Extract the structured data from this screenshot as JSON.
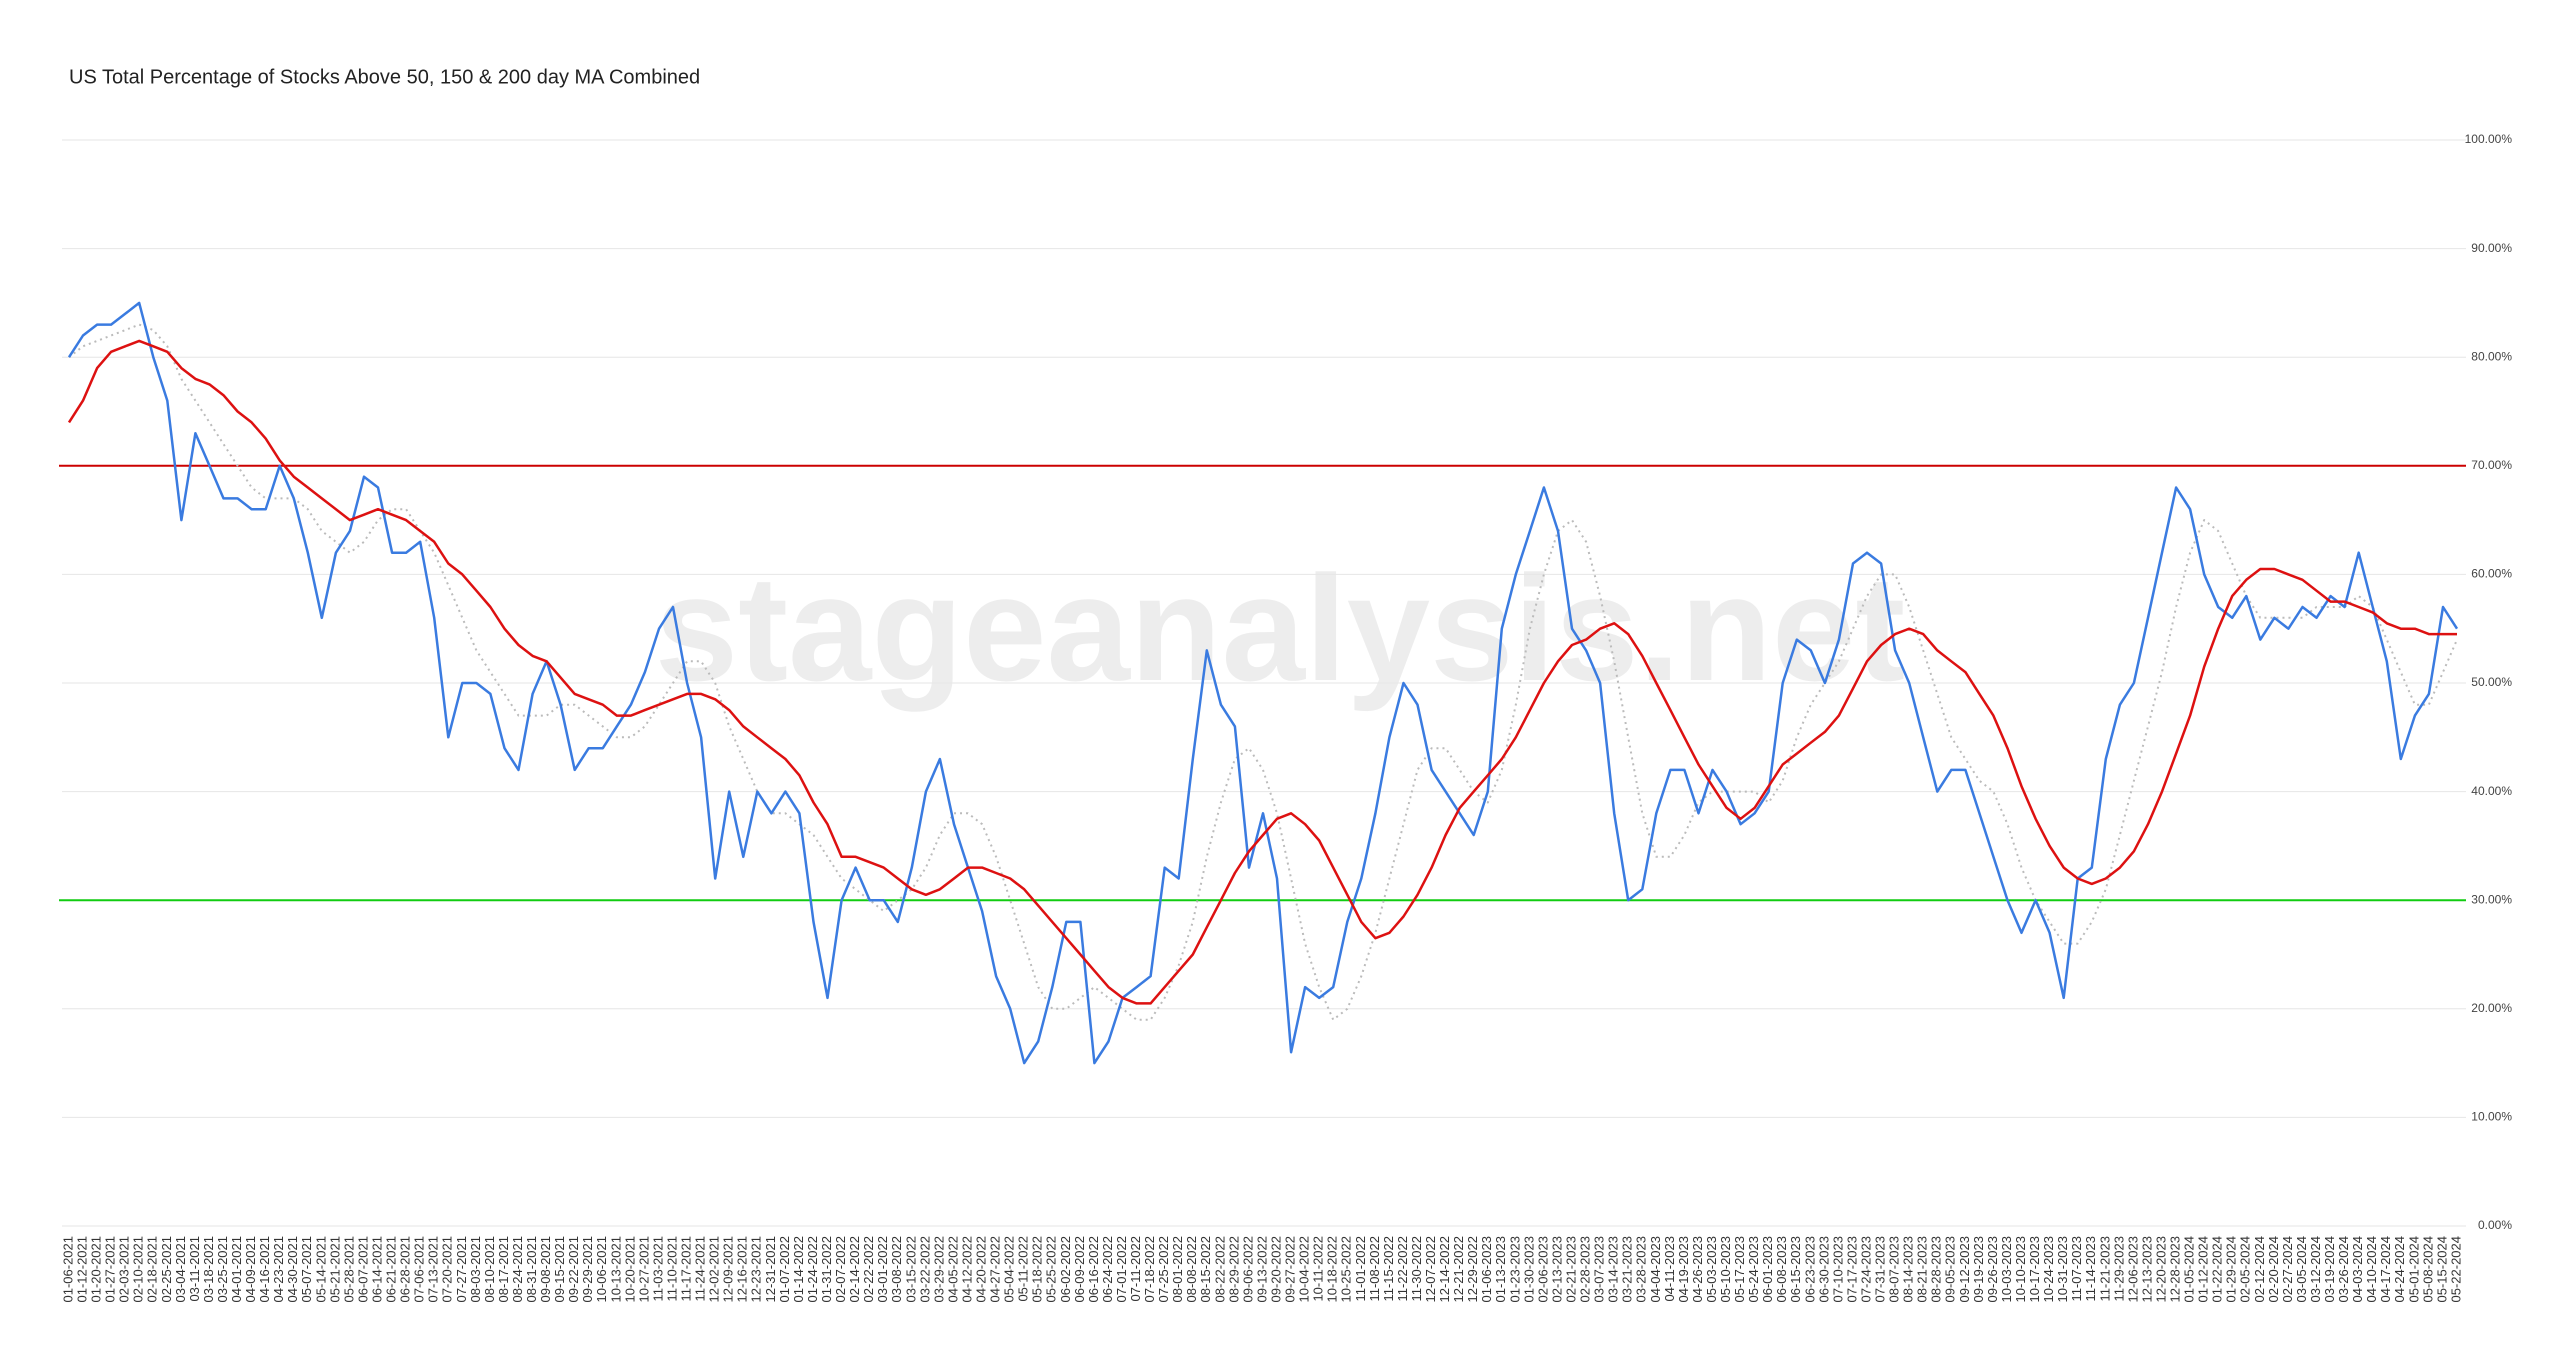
{
  "chart_data": {
    "type": "line",
    "title": "US Total Percentage of Stocks Above 50, 150 & 200 day MA Combined",
    "watermark": "stageanalysis.net",
    "categories": [
      "01-06-2021",
      "01-12-2021",
      "01-20-2021",
      "01-27-2021",
      "02-03-2021",
      "02-10-2021",
      "02-18-2021",
      "02-25-2021",
      "03-04-2021",
      "03-11-2021",
      "03-18-2021",
      "03-25-2021",
      "04-01-2021",
      "04-09-2021",
      "04-16-2021",
      "04-23-2021",
      "04-30-2021",
      "05-07-2021",
      "05-14-2021",
      "05-21-2021",
      "05-28-2021",
      "06-07-2021",
      "06-14-2021",
      "06-21-2021",
      "06-28-2021",
      "07-06-2021",
      "07-13-2021",
      "07-20-2021",
      "07-27-2021",
      "08-03-2021",
      "08-10-2021",
      "08-17-2021",
      "08-24-2021",
      "08-31-2021",
      "09-08-2021",
      "09-15-2021",
      "09-22-2021",
      "09-29-2021",
      "10-06-2021",
      "10-13-2021",
      "10-20-2021",
      "10-27-2021",
      "11-03-2021",
      "11-10-2021",
      "11-17-2021",
      "11-24-2021",
      "12-02-2021",
      "12-09-2021",
      "12-16-2021",
      "12-23-2021",
      "12-31-2021",
      "01-07-2022",
      "01-14-2022",
      "01-24-2022",
      "01-31-2022",
      "02-07-2022",
      "02-14-2022",
      "02-22-2022",
      "03-01-2022",
      "03-08-2022",
      "03-15-2022",
      "03-22-2022",
      "03-29-2022",
      "04-05-2022",
      "04-12-2022",
      "04-20-2022",
      "04-27-2022",
      "05-04-2022",
      "05-11-2022",
      "05-18-2022",
      "05-25-2022",
      "06-02-2022",
      "06-09-2022",
      "06-16-2022",
      "06-24-2022",
      "07-01-2022",
      "07-11-2022",
      "07-18-2022",
      "07-25-2022",
      "08-01-2022",
      "08-08-2022",
      "08-15-2022",
      "08-22-2022",
      "08-29-2022",
      "09-06-2022",
      "09-13-2022",
      "09-20-2022",
      "09-27-2022",
      "10-04-2022",
      "10-11-2022",
      "10-18-2022",
      "10-25-2022",
      "11-01-2022",
      "11-08-2022",
      "11-15-2022",
      "11-22-2022",
      "11-30-2022",
      "12-07-2022",
      "12-14-2022",
      "12-21-2022",
      "12-29-2022",
      "01-06-2023",
      "01-13-2023",
      "01-23-2023",
      "01-30-2023",
      "02-06-2023",
      "02-13-2023",
      "02-21-2023",
      "02-28-2023",
      "03-07-2023",
      "03-14-2023",
      "03-21-2023",
      "03-28-2023",
      "04-04-2023",
      "04-11-2023",
      "04-19-2023",
      "04-26-2023",
      "05-03-2023",
      "05-10-2023",
      "05-17-2023",
      "05-24-2023",
      "06-01-2023",
      "06-08-2023",
      "06-15-2023",
      "06-23-2023",
      "06-30-2023",
      "07-10-2023",
      "07-17-2023",
      "07-24-2023",
      "07-31-2023",
      "08-07-2023",
      "08-14-2023",
      "08-21-2023",
      "08-28-2023",
      "09-05-2023",
      "09-12-2023",
      "09-19-2023",
      "09-26-2023",
      "10-03-2023",
      "10-10-2023",
      "10-17-2023",
      "10-24-2023",
      "10-31-2023",
      "11-07-2023",
      "11-14-2023",
      "11-21-2023",
      "11-29-2023",
      "12-06-2023",
      "12-13-2023",
      "12-20-2023",
      "12-28-2023",
      "01-05-2024",
      "01-12-2024",
      "01-22-2024",
      "01-29-2024",
      "02-05-2024",
      "02-12-2024",
      "02-20-2024",
      "02-27-2024",
      "03-05-2024",
      "03-12-2024",
      "03-19-2024",
      "03-26-2024",
      "04-03-2024",
      "04-10-2024",
      "04-17-2024",
      "04-24-2024",
      "05-01-2024",
      "05-08-2024",
      "05-15-2024",
      "05-22-2024"
    ],
    "series": [
      {
        "color": "#bbbbbb",
        "dashed": true,
        "values": [
          80,
          81,
          81.5,
          82,
          82.5,
          83,
          82.5,
          81,
          78,
          76,
          74,
          72,
          70,
          68,
          67,
          67,
          67,
          66,
          64,
          63,
          62,
          63,
          65,
          66,
          66,
          64,
          62,
          59,
          56,
          53,
          51,
          49,
          47,
          47,
          47,
          48,
          48,
          47,
          46,
          45,
          45,
          46,
          48,
          50,
          52,
          52,
          50,
          46,
          43,
          40,
          38,
          38,
          37,
          36,
          34,
          32,
          31,
          30,
          29,
          30,
          31,
          33,
          36,
          38,
          38,
          37,
          34,
          30,
          26,
          22,
          20,
          20,
          21,
          22,
          21,
          20,
          19,
          19,
          21,
          24,
          28,
          34,
          39,
          43,
          44,
          42,
          38,
          32,
          26,
          22,
          19,
          20,
          23,
          27,
          32,
          37,
          42,
          44,
          44,
          42,
          40,
          39,
          42,
          48,
          55,
          60,
          64,
          65,
          63,
          58,
          52,
          45,
          38,
          34,
          34,
          36,
          39,
          40,
          40,
          40,
          40,
          39,
          41,
          45,
          48,
          50,
          52,
          55,
          58,
          60,
          60,
          57,
          53,
          49,
          45,
          43,
          41,
          40,
          37,
          33,
          30,
          28,
          26,
          26,
          28,
          31,
          36,
          41,
          46,
          51,
          57,
          62,
          65,
          64,
          61,
          58,
          56,
          56,
          56,
          56,
          57,
          57,
          57,
          58,
          57,
          54,
          51,
          48,
          48,
          51,
          54
        ]
      },
      {
        "color": "#3a7be0",
        "values": [
          80,
          82,
          83,
          83,
          84,
          85,
          80,
          76,
          65,
          73,
          70,
          67,
          67,
          66,
          66,
          70,
          67,
          62,
          56,
          62,
          64,
          69,
          68,
          62,
          62,
          63,
          56,
          45,
          50,
          50,
          49,
          44,
          42,
          49,
          52,
          48,
          42,
          44,
          44,
          46,
          48,
          51,
          55,
          57,
          50,
          45,
          32,
          40,
          34,
          40,
          38,
          40,
          38,
          28,
          21,
          30,
          33,
          30,
          30,
          28,
          33,
          40,
          43,
          37,
          33,
          29,
          23,
          20,
          15,
          17,
          22,
          28,
          28,
          15,
          17,
          21,
          22,
          23,
          33,
          32,
          43,
          53,
          48,
          46,
          33,
          38,
          32,
          16,
          22,
          21,
          22,
          28,
          32,
          38,
          45,
          50,
          48,
          42,
          40,
          38,
          36,
          40,
          55,
          60,
          64,
          68,
          64,
          55,
          53,
          50,
          38,
          30,
          31,
          38,
          42,
          42,
          38,
          42,
          40,
          37,
          38,
          40,
          50,
          54,
          53,
          50,
          54,
          61,
          62,
          61,
          53,
          50,
          45,
          40,
          42,
          42,
          38,
          34,
          30,
          27,
          30,
          27,
          21,
          32,
          33,
          43,
          48,
          50,
          56,
          62,
          68,
          66,
          60,
          57,
          56,
          58,
          54,
          56,
          55,
          57,
          56,
          58,
          57,
          62,
          57,
          52,
          43,
          47,
          49,
          57,
          55
        ]
      },
      {
        "color": "#dd1111",
        "values": [
          74,
          76,
          79,
          80.5,
          81,
          81.5,
          81,
          80.5,
          79,
          78,
          77.5,
          76.5,
          75,
          74,
          72.5,
          70.5,
          69,
          68,
          67,
          66,
          65,
          65.5,
          66,
          65.5,
          65,
          64,
          63,
          61,
          60,
          58.5,
          57,
          55,
          53.5,
          52.5,
          52,
          50.5,
          49,
          48.5,
          48,
          47,
          47,
          47.5,
          48,
          48.5,
          49,
          49,
          48.5,
          47.5,
          46,
          45,
          44,
          43,
          41.5,
          39,
          37,
          34,
          34,
          33.5,
          33,
          32,
          31,
          30.5,
          31,
          32,
          33,
          33,
          32.5,
          32,
          31,
          29.5,
          28,
          26.5,
          25,
          23.5,
          22,
          21,
          20.5,
          20.5,
          22,
          23.5,
          25,
          27.5,
          30,
          32.5,
          34.5,
          36,
          37.5,
          38,
          37,
          35.5,
          33,
          30.5,
          28,
          26.5,
          27,
          28.5,
          30.5,
          33,
          36,
          38.5,
          40,
          41.5,
          43,
          45,
          47.5,
          50,
          52,
          53.5,
          54,
          55,
          55.5,
          54.5,
          52.5,
          50,
          47.5,
          45,
          42.5,
          40.5,
          38.5,
          37.5,
          38.5,
          40.5,
          42.5,
          43.5,
          44.5,
          45.5,
          47,
          49.5,
          52,
          53.5,
          54.5,
          55,
          54.5,
          53,
          52,
          51,
          49,
          47,
          44,
          40.5,
          37.5,
          35,
          33,
          32,
          31.5,
          32,
          33,
          34.5,
          37,
          40,
          43.5,
          47,
          51.5,
          55,
          58,
          59.5,
          60.5,
          60.5,
          60,
          59.5,
          58.5,
          57.5,
          57.5,
          57,
          56.5,
          55.5,
          55,
          55,
          54.5,
          54.5,
          54.5
        ]
      }
    ],
    "hlines": [
      {
        "value": 70,
        "color": "#cc0000"
      },
      {
        "value": 30,
        "color": "#11cc11"
      }
    ],
    "ylim": [
      0,
      100
    ],
    "yticks": [
      {
        "value": 0,
        "label": "0.00%"
      },
      {
        "value": 10,
        "label": "10.00%"
      },
      {
        "value": 20,
        "label": "20.00%"
      },
      {
        "value": 30,
        "label": "30.00%"
      },
      {
        "value": 40,
        "label": "40.00%"
      },
      {
        "value": 50,
        "label": "50.00%"
      },
      {
        "value": 60,
        "label": "60.00%"
      },
      {
        "value": 70,
        "label": "70.00%"
      },
      {
        "value": 80,
        "label": "80.00%"
      },
      {
        "value": 90,
        "label": "90.00%"
      },
      {
        "value": 100,
        "label": "100.00%"
      }
    ],
    "grid": true
  }
}
